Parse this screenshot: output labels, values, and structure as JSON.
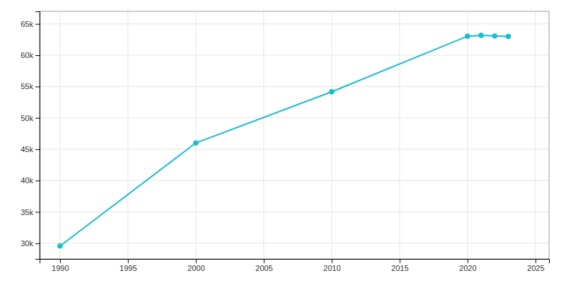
{
  "chart_data": {
    "type": "line",
    "x": [
      1990,
      2000,
      2010,
      2020,
      2021,
      2022,
      2023
    ],
    "values": [
      29563,
      46005,
      54165,
      63034,
      63165,
      63065,
      63000
    ],
    "color": "#17becf",
    "marker": "circle",
    "xlim": [
      1988.5,
      2026
    ],
    "ylim": [
      27500,
      67000
    ],
    "xticks": [
      1990,
      1995,
      2000,
      2005,
      2010,
      2015,
      2020,
      2025
    ],
    "yticks": [
      {
        "value": 30000,
        "label": "30k"
      },
      {
        "value": 35000,
        "label": "35k"
      },
      {
        "value": 40000,
        "label": "40k"
      },
      {
        "value": 45000,
        "label": "45k"
      },
      {
        "value": 50000,
        "label": "50k"
      },
      {
        "value": 55000,
        "label": "55k"
      },
      {
        "value": 60000,
        "label": "60k"
      },
      {
        "value": 65000,
        "label": "65k"
      }
    ],
    "grid": true
  }
}
